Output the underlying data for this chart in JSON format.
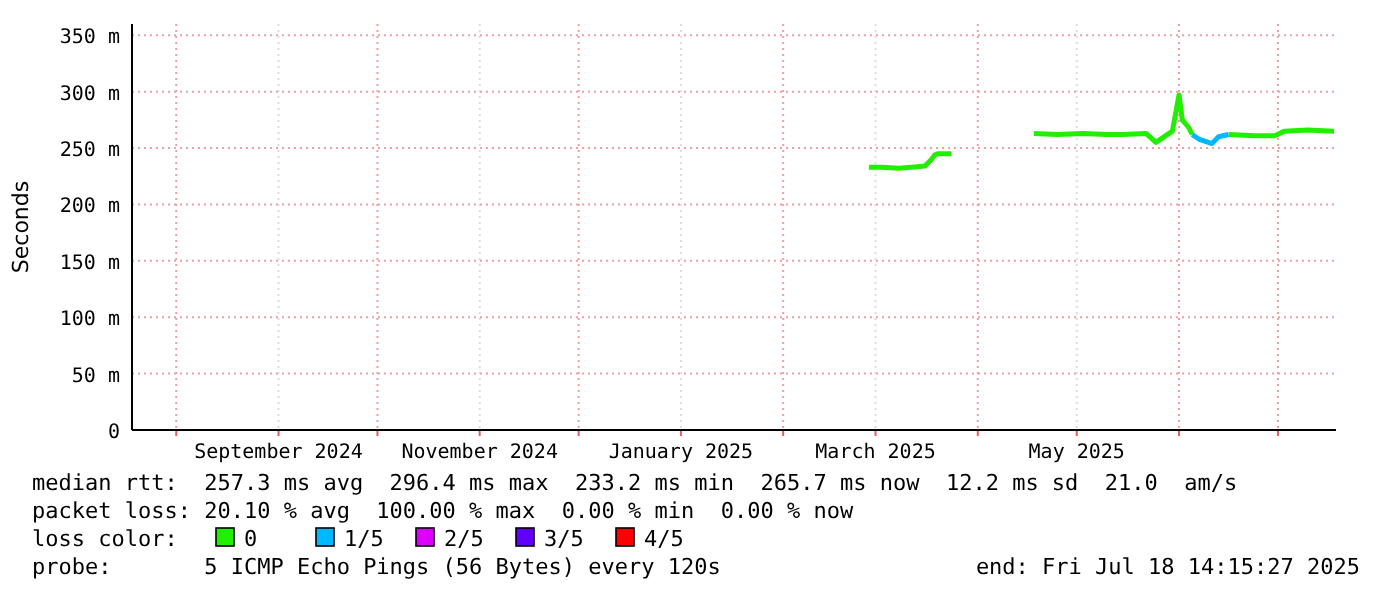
{
  "chart_data": {
    "type": "line",
    "ylabel": "Seconds",
    "legend_title": "loss color:",
    "legend": "bottom",
    "grid": true,
    "xlim": [
      "2024-07-18T14:15",
      "2025-07-18T14:15"
    ],
    "xticks": [
      {
        "value": "2024-08-01",
        "label": null
      },
      {
        "value": "2024-09-01",
        "label": "September 2024"
      },
      {
        "value": "2024-10-01",
        "label": null
      },
      {
        "value": "2024-11-01",
        "label": "November 2024"
      },
      {
        "value": "2024-12-01",
        "label": null
      },
      {
        "value": "2025-01-01",
        "label": "January 2025"
      },
      {
        "value": "2025-02-01",
        "label": null
      },
      {
        "value": "2025-03-01",
        "label": "March 2025"
      },
      {
        "value": "2025-04-01",
        "label": null
      },
      {
        "value": "2025-05-01",
        "label": "May 2025"
      },
      {
        "value": "2025-06-01",
        "label": null
      },
      {
        "value": "2025-07-01",
        "label": null
      }
    ],
    "ylim": [
      0,
      360
    ],
    "yticks": [
      0,
      {
        "value": 50,
        "label": "50 m"
      },
      {
        "value": 100,
        "label": "100 m"
      },
      {
        "value": 150,
        "label": "150 m"
      },
      {
        "value": 200,
        "label": "200 m"
      },
      {
        "value": 250,
        "label": "250 m"
      },
      {
        "value": 300,
        "label": "300 m"
      },
      {
        "value": 350,
        "label": "350 m"
      }
    ],
    "series": [
      {
        "name": "0",
        "color": "#22ee00",
        "x": [
          "2025-02-27",
          "2025-03-03",
          "2025-03-08",
          "2025-03-12",
          "2025-03-16",
          "2025-03-18",
          "2025-03-19",
          "2025-03-20",
          "2025-03-24",
          "2025-04-10",
          "2025-04-18",
          "2025-04-25",
          "2025-05-03",
          "2025-05-10",
          "2025-05-15",
          "2025-05-22",
          "2025-05-25",
          "2025-05-28",
          "2025-05-30",
          "2025-06-01",
          "2025-06-02",
          "2025-06-04",
          "2025-06-05",
          "2025-06-09",
          "2025-06-16",
          "2025-06-24",
          "2025-06-30",
          "2025-07-03",
          "2025-07-10",
          "2025-07-18"
        ],
        "values": [
          233,
          233,
          232,
          233,
          234,
          240,
          244,
          245,
          245,
          null,
          263,
          262,
          263,
          262,
          262,
          263,
          255,
          261,
          265,
          297,
          275,
          268,
          262,
          null,
          262,
          261,
          261,
          265,
          266,
          265
        ]
      },
      {
        "name": "1/5",
        "color": "#00b8ff",
        "x": [
          "2025-06-05",
          "2025-06-07",
          "2025-06-11",
          "2025-06-13",
          "2025-06-16"
        ],
        "values": [
          262,
          258,
          254,
          260,
          262
        ]
      },
      {
        "name": "2/5",
        "color": "#dd00ff"
      },
      {
        "name": "3/5",
        "color": "#6200ff"
      },
      {
        "name": "4/5",
        "color": "#ff0000"
      }
    ],
    "annotations": [
      "median rtt:  257.3 ms avg  296.4 ms max  233.2 ms min  265.7 ms now  12.2 ms sd  21.0  am/s",
      "packet loss: 20.10 % avg  100.00 % max  0.00 % min  0.00 % now",
      "probe:       5 ICMP Echo Pings (56 Bytes) every 120s",
      "end: Fri Jul 18 14:15:27 2025"
    ]
  }
}
